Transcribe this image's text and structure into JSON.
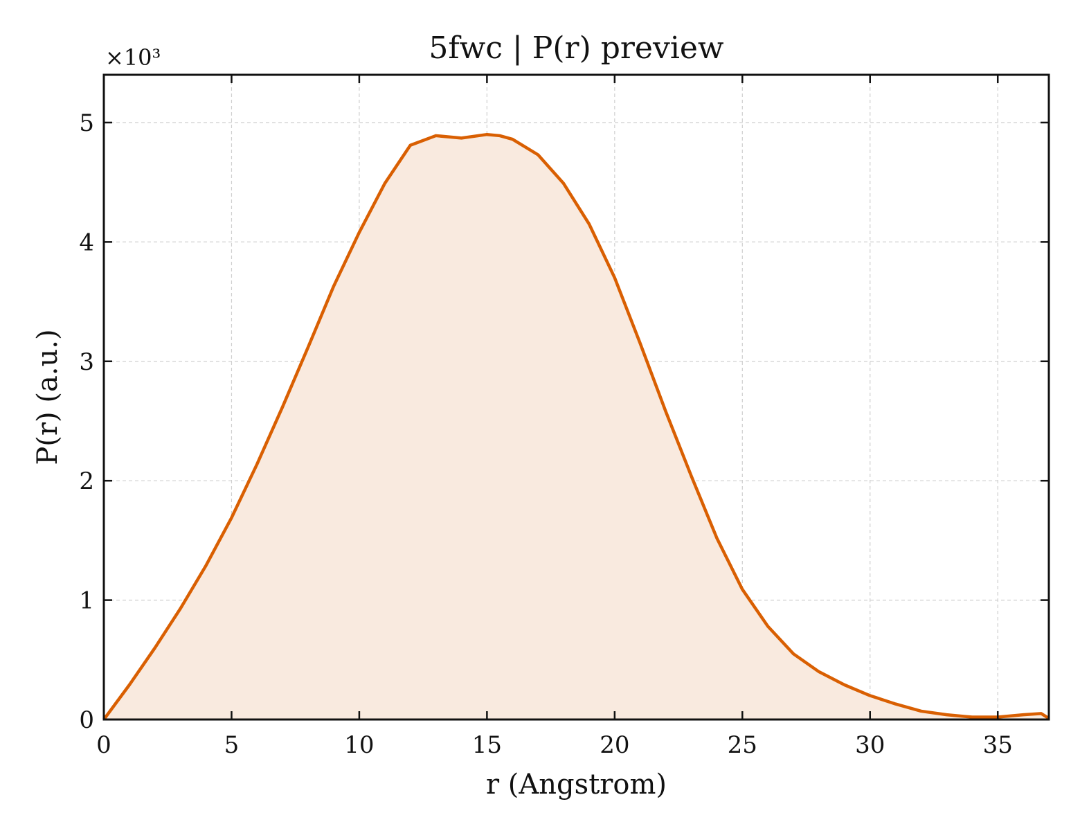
{
  "chart_data": {
    "type": "area",
    "title": "5fwc | P(r) preview",
    "xlabel": "r (Angstrom)",
    "ylabel": "P(r) (a.u.)",
    "y_multiplier_label": "×10³",
    "xlim": [
      0,
      37
    ],
    "ylim": [
      0,
      5.4
    ],
    "y_unit_scale": 1000,
    "xticks": [
      0,
      5,
      10,
      15,
      20,
      25,
      30,
      35
    ],
    "yticks": [
      0,
      1,
      2,
      3,
      4,
      5
    ],
    "xtick_labels": [
      "0",
      "5",
      "10",
      "15",
      "20",
      "25",
      "30",
      "35"
    ],
    "ytick_labels": [
      "0",
      "1",
      "2",
      "3",
      "4",
      "5"
    ],
    "grid": true,
    "line_color": "#d95f02",
    "fill_color": "#f9eadf",
    "series": [
      {
        "x": [
          0,
          1,
          2,
          3,
          4,
          5,
          6,
          7,
          8,
          9,
          10,
          11,
          12,
          13,
          14,
          15,
          15.5,
          16,
          17,
          18,
          19,
          20,
          21,
          22,
          23,
          24,
          25,
          26,
          27,
          28,
          29,
          30,
          31,
          32,
          33,
          34,
          35,
          36,
          36.7,
          37
        ],
        "y": [
          0,
          0.29,
          0.6,
          0.93,
          1.29,
          1.69,
          2.14,
          2.62,
          3.12,
          3.63,
          4.08,
          4.49,
          4.81,
          4.89,
          4.87,
          4.9,
          4.89,
          4.86,
          4.73,
          4.49,
          4.15,
          3.7,
          3.15,
          2.58,
          2.04,
          1.52,
          1.09,
          0.78,
          0.55,
          0.4,
          0.29,
          0.2,
          0.13,
          0.07,
          0.04,
          0.02,
          0.02,
          0.04,
          0.05,
          0.01
        ]
      }
    ]
  }
}
